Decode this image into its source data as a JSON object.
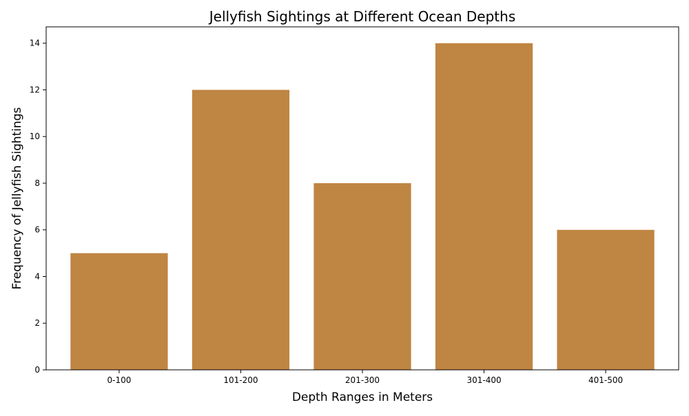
{
  "chart_data": {
    "type": "bar",
    "title": "Jellyfish Sightings at Different Ocean Depths",
    "xlabel": "Depth Ranges in Meters",
    "ylabel": "Frequency of Jellyfish Sightings",
    "categories": [
      "0-100",
      "101-200",
      "201-300",
      "301-400",
      "401-500"
    ],
    "values": [
      5,
      12,
      8,
      14,
      6
    ],
    "ylim": [
      0,
      14.7
    ],
    "yticks": [
      0,
      2,
      4,
      6,
      8,
      10,
      12,
      14
    ],
    "grid": false,
    "legend": "none",
    "bar_color": "#bf8542"
  }
}
